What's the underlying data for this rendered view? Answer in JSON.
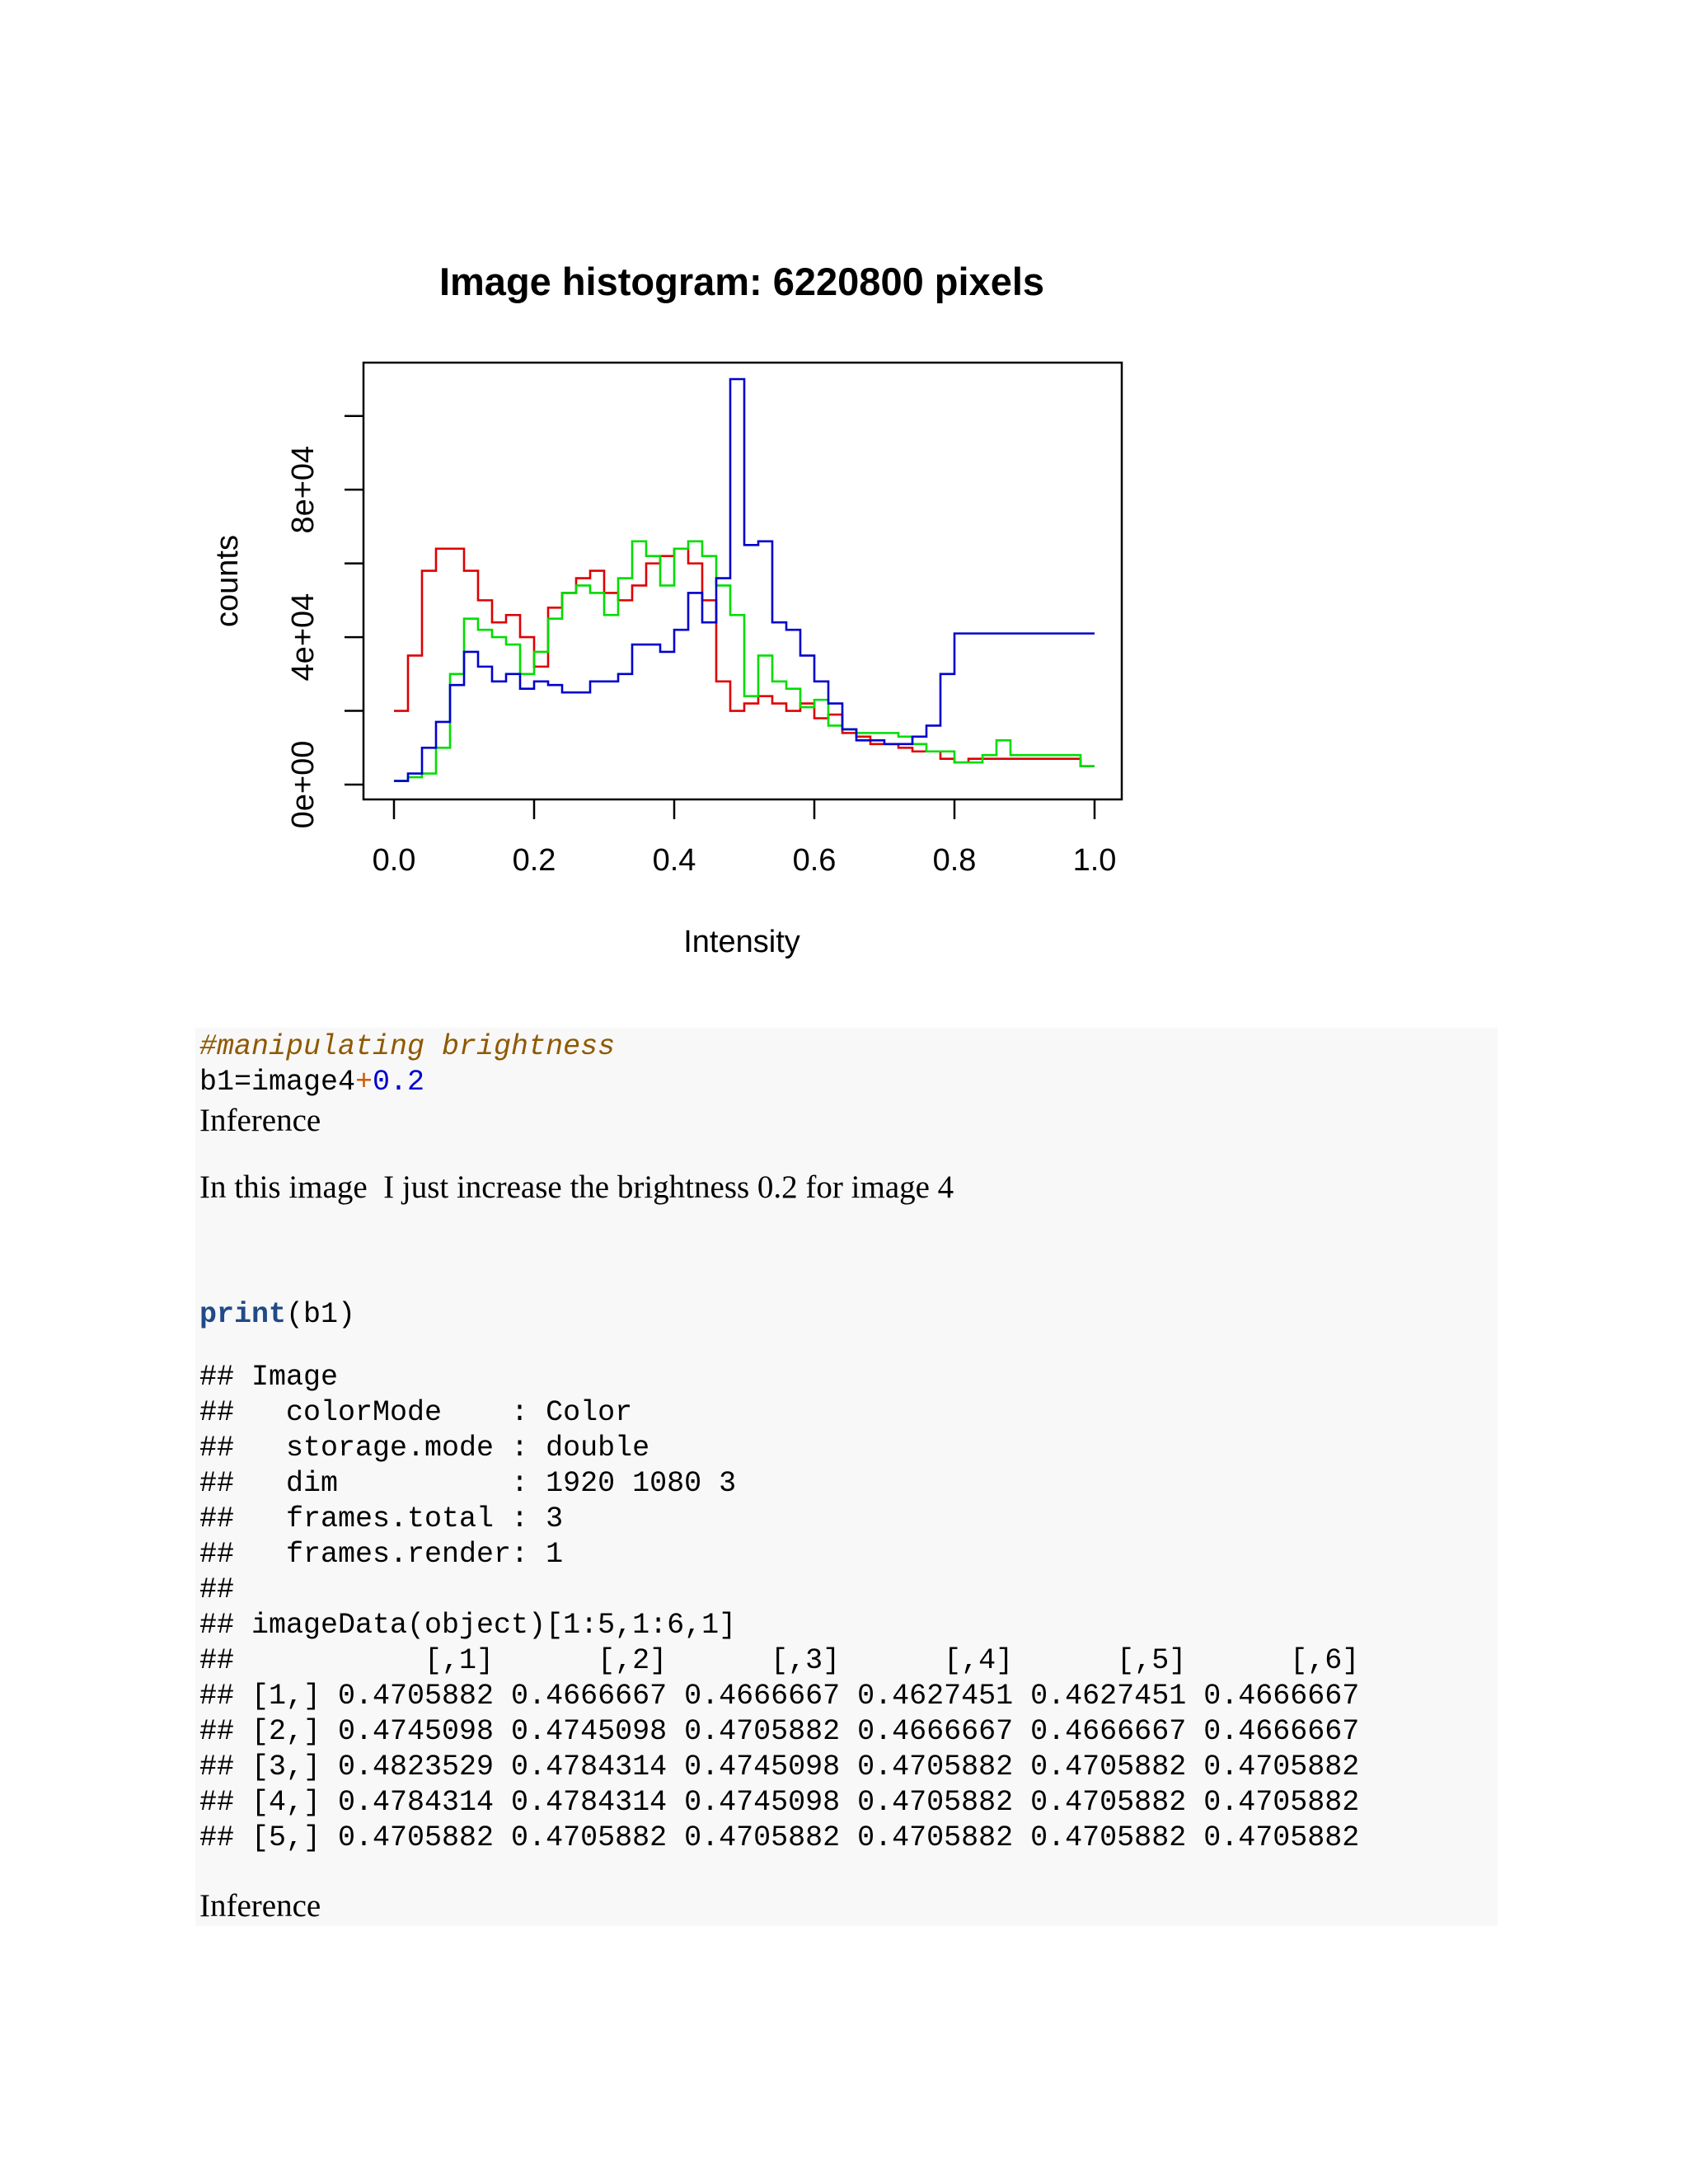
{
  "chart_data": {
    "type": "line",
    "title": "Image histogram: 6220800 pixels",
    "xlabel": "Intensity",
    "ylabel": "counts",
    "xlim": [
      0,
      1
    ],
    "ylim": [
      0,
      110000
    ],
    "x_ticks": [
      "0.0",
      "0.2",
      "0.4",
      "0.6",
      "0.8",
      "1.0"
    ],
    "y_ticks": [
      "0e+00",
      "4e+04",
      "8e+04"
    ],
    "grid": false,
    "legend": "none",
    "step": "post",
    "x": [
      0.0,
      0.02,
      0.04,
      0.06,
      0.08,
      0.1,
      0.12,
      0.14,
      0.16,
      0.18,
      0.2,
      0.22,
      0.24,
      0.26,
      0.28,
      0.3,
      0.32,
      0.34,
      0.36,
      0.38,
      0.4,
      0.42,
      0.44,
      0.46,
      0.48,
      0.5,
      0.52,
      0.54,
      0.56,
      0.58,
      0.6,
      0.62,
      0.64,
      0.66,
      0.68,
      0.7,
      0.72,
      0.74,
      0.76,
      0.78,
      0.8,
      0.82,
      0.84,
      0.86,
      0.88,
      0.9,
      0.92,
      0.94,
      0.96,
      0.98,
      1.0
    ],
    "series": [
      {
        "color": "#dd0000",
        "values": [
          20000,
          35000,
          58000,
          64000,
          64000,
          58000,
          50000,
          44000,
          46000,
          40000,
          32000,
          48000,
          52000,
          56000,
          58000,
          52000,
          50000,
          54000,
          60000,
          62000,
          64000,
          60000,
          50000,
          28000,
          20000,
          22000,
          24000,
          22000,
          20000,
          22000,
          18000,
          19000,
          14000,
          13000,
          11000,
          11000,
          10000,
          9000,
          9000,
          7000,
          6000,
          7000,
          7000,
          7000,
          7000,
          7000,
          7000,
          7000,
          7000,
          5000,
          5000
        ]
      },
      {
        "color": "#00dd00",
        "values": [
          1000,
          2000,
          3000,
          10000,
          30000,
          45000,
          42000,
          40000,
          38000,
          30000,
          36000,
          45000,
          52000,
          54000,
          52000,
          46000,
          56000,
          66000,
          62000,
          54000,
          64000,
          66000,
          62000,
          54000,
          46000,
          24000,
          35000,
          28000,
          26000,
          21000,
          23000,
          16000,
          15000,
          14000,
          14000,
          14000,
          13000,
          11000,
          9000,
          9000,
          6000,
          6000,
          8000,
          12000,
          8000,
          8000,
          8000,
          8000,
          8000,
          5000,
          5000
        ]
      },
      {
        "color": "#0000cc",
        "values": [
          1000,
          3000,
          10000,
          17000,
          27000,
          36000,
          32000,
          28000,
          30000,
          26000,
          28000,
          27000,
          25000,
          25000,
          28000,
          28000,
          30000,
          38000,
          38000,
          36000,
          42000,
          52000,
          44000,
          56000,
          110000,
          65000,
          66000,
          44000,
          42000,
          35000,
          28000,
          22000,
          15000,
          12000,
          12000,
          11000,
          11000,
          13000,
          16000,
          30000,
          41000,
          41000,
          41000,
          41000,
          41000,
          41000,
          41000,
          41000,
          41000,
          41000,
          41000
        ]
      }
    ]
  },
  "code": {
    "comment": "#manipulating brightness",
    "assign_lhs": "b1=image4",
    "assign_op": "+",
    "assign_num": "0.2",
    "print_fn": "print",
    "print_args": "(b1)"
  },
  "prose": {
    "inference_1": "Inference",
    "paragraph": "In this image  I just increase the brightness 0.2 for image 4",
    "inference_2": "Inference"
  },
  "output_lines": [
    "## Image",
    "##   colorMode    : Color",
    "##   storage.mode : double",
    "##   dim          : 1920 1080 3",
    "##   frames.total : 3",
    "##   frames.render: 1",
    "##",
    "## imageData(object)[1:5,1:6,1]",
    "##           [,1]      [,2]      [,3]      [,4]      [,5]      [,6]",
    "## [1,] 0.4705882 0.4666667 0.4666667 0.4627451 0.4627451 0.4666667",
    "## [2,] 0.4745098 0.4745098 0.4705882 0.4666667 0.4666667 0.4666667",
    "## [3,] 0.4823529 0.4784314 0.4745098 0.4705882 0.4705882 0.4705882",
    "## [4,] 0.4784314 0.4784314 0.4745098 0.4705882 0.4705882 0.4705882",
    "## [5,] 0.4705882 0.4705882 0.4705882 0.4705882 0.4705882 0.4705882"
  ]
}
